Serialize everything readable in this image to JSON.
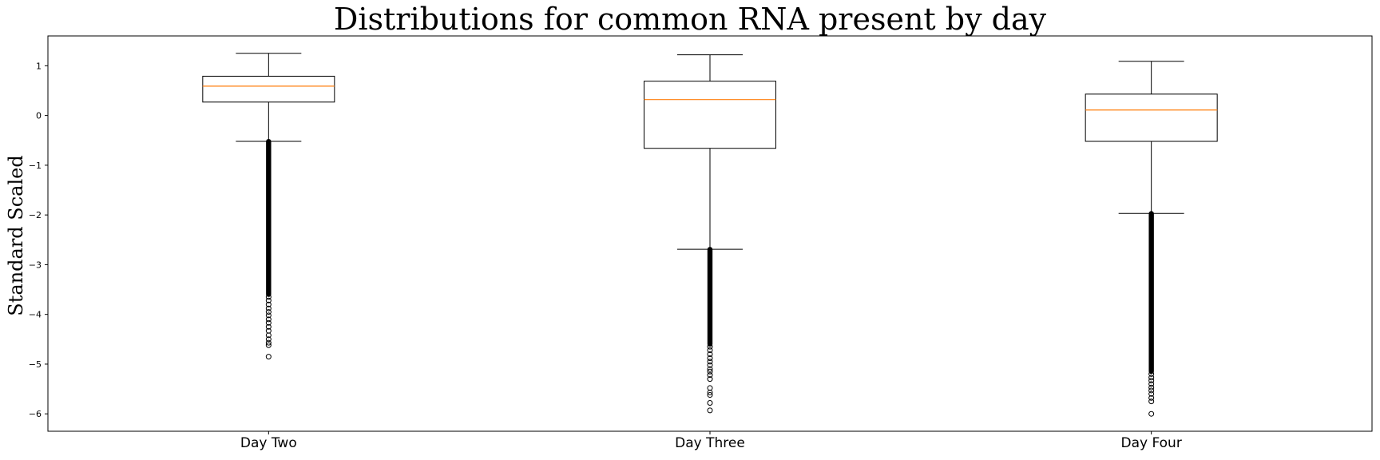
{
  "chart_data": {
    "type": "boxplot",
    "title": "Distributions for common RNA present by day",
    "xlabel": "",
    "ylabel": "Standard Scaled",
    "ylim": [
      -6.35,
      1.6
    ],
    "yticks": [
      -6,
      -5,
      -4,
      -3,
      -2,
      -1,
      0,
      1
    ],
    "grid": false,
    "categories": [
      "Day Two",
      "Day Three",
      "Day Four"
    ],
    "boxes": [
      {
        "label": "Day Two",
        "whisker_low": -0.52,
        "q1": 0.27,
        "median": 0.59,
        "q3": 0.79,
        "whisker_high": 1.25,
        "outlier_dense_range": [
          -3.6,
          -0.52
        ],
        "outliers": [
          -3.65,
          -3.72,
          -3.8,
          -3.88,
          -3.95,
          -4.02,
          -4.1,
          -4.17,
          -4.25,
          -4.33,
          -4.42,
          -4.5,
          -4.57,
          -4.62,
          -4.85
        ]
      },
      {
        "label": "Day Three",
        "whisker_low": -2.69,
        "q1": -0.66,
        "median": 0.32,
        "q3": 0.69,
        "whisker_high": 1.22,
        "outlier_dense_range": [
          -4.6,
          -2.69
        ],
        "outliers": [
          -4.65,
          -4.72,
          -4.8,
          -4.88,
          -4.95,
          -5.02,
          -5.1,
          -5.15,
          -5.22,
          -5.3,
          -5.48,
          -5.57,
          -5.62,
          -5.78,
          -5.93
        ]
      },
      {
        "label": "Day Four",
        "whisker_low": -1.97,
        "q1": -0.52,
        "median": 0.11,
        "q3": 0.43,
        "whisker_high": 1.09,
        "outlier_dense_range": [
          -5.15,
          -1.97
        ],
        "outliers": [
          -5.2,
          -5.27,
          -5.33,
          -5.4,
          -5.47,
          -5.53,
          -5.6,
          -5.68,
          -5.75,
          -6.0
        ]
      }
    ],
    "colors": {
      "box": "#000000",
      "median": "#ff7f0e",
      "outlier": "#000000",
      "background": "#ffffff"
    }
  }
}
